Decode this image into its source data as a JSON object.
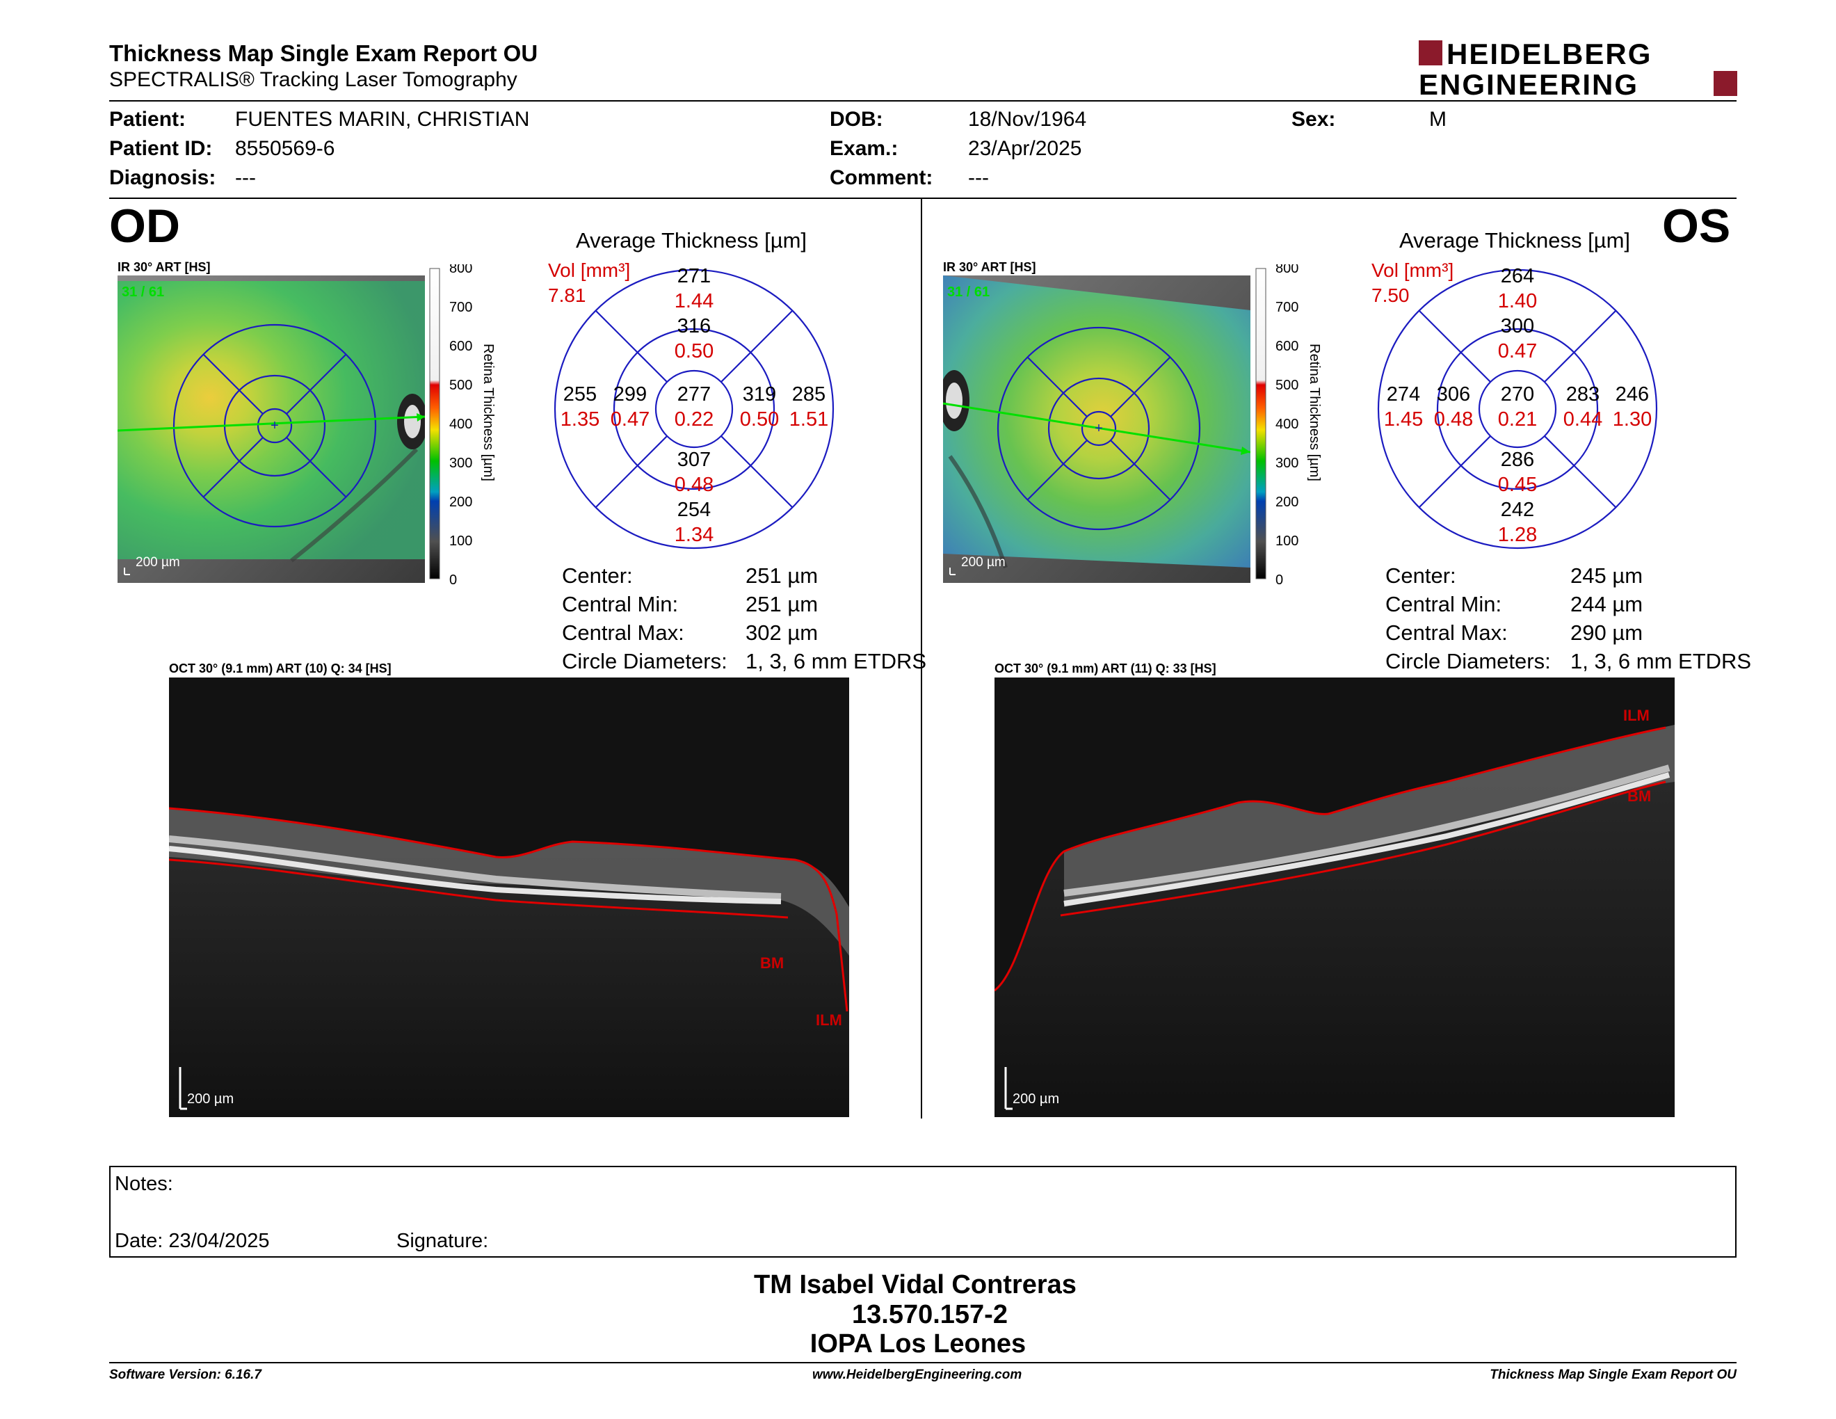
{
  "header": {
    "title": "Thickness Map Single Exam Report OU",
    "subtitle": "SPECTRALIS® Tracking Laser Tomography",
    "logo_line1": "HEIDELBERG",
    "logo_line2": "ENGINEERING",
    "brand_color": "#8b1a2b"
  },
  "patient": {
    "patient_label": "Patient:",
    "patient_name": "FUENTES MARIN, CHRISTIAN",
    "id_label": "Patient ID:",
    "id_value": "8550569-6",
    "diagnosis_label": "Diagnosis:",
    "diagnosis_value": "---",
    "dob_label": "DOB:",
    "dob_value": "18/Nov/1964",
    "exam_label": "Exam.:",
    "exam_value": "23/Apr/2025",
    "comment_label": "Comment:",
    "comment_value": "---",
    "sex_label": "Sex:",
    "sex_value": "M"
  },
  "od": {
    "eye": "OD",
    "ir_label": "IR 30° ART [HS]",
    "frame_counter": "31 / 61",
    "scale": "200 µm",
    "colorbar_ticks": [
      "800",
      "700",
      "600",
      "500",
      "400",
      "300",
      "200",
      "100",
      "0"
    ],
    "colorbar_title": "Retina  Thickness [µm]",
    "avg_title": "Average Thickness [µm]",
    "vol_label": "Vol [mm³]",
    "vol_total": "7.81",
    "grid": {
      "center": {
        "t": "277",
        "v": "0.22"
      },
      "inner_sup": {
        "t": "316",
        "v": "0.50"
      },
      "inner_inf": {
        "t": "307",
        "v": "0.48"
      },
      "inner_left": {
        "t": "299",
        "v": "0.47"
      },
      "inner_right": {
        "t": "319",
        "v": "0.50"
      },
      "outer_sup": {
        "t": "271",
        "v": "1.44"
      },
      "outer_inf": {
        "t": "254",
        "v": "1.34"
      },
      "outer_left": {
        "t": "255",
        "v": "1.35"
      },
      "outer_right": {
        "t": "285",
        "v": "1.51"
      }
    },
    "stats": [
      {
        "label": "Center:",
        "value": "251 µm"
      },
      {
        "label": "Central Min:",
        "value": "251 µm"
      },
      {
        "label": "Central Max:",
        "value": "302 µm"
      },
      {
        "label": "Circle Diameters:",
        "value": "1, 3, 6 mm ETDRS"
      }
    ],
    "oct_label": "OCT 30° (9.1 mm) ART (10) Q: 34 [HS]",
    "oct_scale": "200 µm",
    "oct_ilm": "ILM",
    "oct_bm": "BM"
  },
  "os": {
    "eye": "OS",
    "ir_label": "IR 30° ART [HS]",
    "frame_counter": "31 / 61",
    "scale": "200 µm",
    "colorbar_ticks": [
      "800",
      "700",
      "600",
      "500",
      "400",
      "300",
      "200",
      "100",
      "0"
    ],
    "colorbar_title": "Retina  Thickness [µm]",
    "avg_title": "Average Thickness [µm]",
    "vol_label": "Vol [mm³]",
    "vol_total": "7.50",
    "grid": {
      "center": {
        "t": "270",
        "v": "0.21"
      },
      "inner_sup": {
        "t": "300",
        "v": "0.47"
      },
      "inner_inf": {
        "t": "286",
        "v": "0.45"
      },
      "inner_left": {
        "t": "306",
        "v": "0.48"
      },
      "inner_right": {
        "t": "283",
        "v": "0.44"
      },
      "outer_sup": {
        "t": "264",
        "v": "1.40"
      },
      "outer_inf": {
        "t": "242",
        "v": "1.28"
      },
      "outer_left": {
        "t": "274",
        "v": "1.45"
      },
      "outer_right": {
        "t": "246",
        "v": "1.30"
      }
    },
    "stats": [
      {
        "label": "Center:",
        "value": "245 µm"
      },
      {
        "label": "Central Min:",
        "value": "244 µm"
      },
      {
        "label": "Central Max:",
        "value": "290 µm"
      },
      {
        "label": "Circle Diameters:",
        "value": "1, 3, 6 mm ETDRS"
      }
    ],
    "oct_label": "OCT 30° (9.1 mm) ART (11) Q: 33 [HS]",
    "oct_scale": "200 µm",
    "oct_ilm": "ILM",
    "oct_bm": "BM"
  },
  "notes": {
    "notes_label": "Notes:",
    "date_label": "Date: 23/04/2025",
    "signature_label": "Signature:"
  },
  "signature": {
    "name": "TM Isabel Vidal Contreras",
    "rut": "13.570.157-2",
    "clinic": "IOPA Los Leones"
  },
  "footer": {
    "software": "Software Version: 6.16.7",
    "website": "www.HeidelbergEngineering.com",
    "report_name": "Thickness Map Single Exam Report OU"
  }
}
